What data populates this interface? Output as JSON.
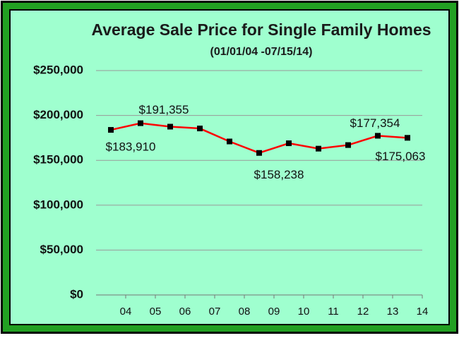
{
  "chart_data": {
    "type": "line",
    "title": "Average Sale Price  for Single Family Homes",
    "subtitle": "(01/01/04 -07/15/14)",
    "categories": [
      "04",
      "05",
      "06",
      "07",
      "08",
      "09",
      "10",
      "11",
      "12",
      "13",
      "14"
    ],
    "series": [
      {
        "name": "Average Sale Price",
        "color": "#ff0000",
        "values": [
          183910,
          191355,
          187500,
          185500,
          171000,
          158238,
          169000,
          163000,
          167000,
          177354,
          175063
        ],
        "value_labels": [
          "$183,910",
          "$191,355",
          null,
          null,
          null,
          "$158,238",
          null,
          null,
          null,
          "$177,354",
          "$175,063"
        ]
      }
    ],
    "ylim": [
      0,
      250000
    ],
    "yticks": [
      {
        "value": 0,
        "label": "$0"
      },
      {
        "value": 50000,
        "label": "$50,000"
      },
      {
        "value": 100000,
        "label": "$100,000"
      },
      {
        "value": 150000,
        "label": "$150,000"
      },
      {
        "value": 200000,
        "label": "$200,000"
      },
      {
        "value": 250000,
        "label": "$250,000"
      }
    ],
    "grid": true
  }
}
